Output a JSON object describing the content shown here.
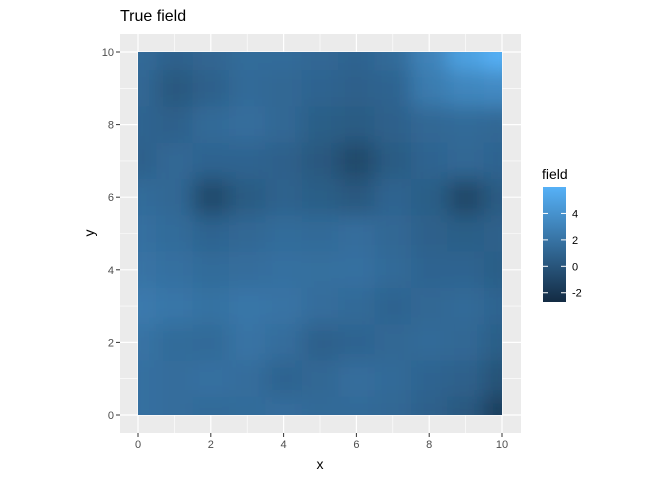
{
  "chart_data": {
    "type": "heatmap",
    "title": "True field",
    "xlabel": "x",
    "ylabel": "y",
    "xlim": [
      0,
      10
    ],
    "ylim": [
      0,
      10
    ],
    "x_ticks": [
      0,
      2,
      4,
      6,
      8,
      10
    ],
    "y_ticks": [
      0,
      2,
      4,
      6,
      8,
      10
    ],
    "grid": true,
    "panel_background": "#EBEBEB",
    "legend": {
      "title": "field",
      "position": "right",
      "ticks": [
        4,
        2,
        0,
        -2
      ],
      "range": [
        -2.7,
        6
      ],
      "colors": {
        "low": "#132B43",
        "high": "#56B1F7"
      }
    },
    "field_grid": {
      "x": [
        0,
        1,
        2,
        3,
        4,
        5,
        6,
        7,
        8,
        9,
        10
      ],
      "y": [
        10,
        9,
        8,
        7,
        6,
        5,
        4,
        3,
        2,
        1,
        0
      ],
      "values": [
        [
          1.4,
          0.9,
          1.1,
          1.5,
          1.5,
          1.2,
          1.0,
          1.5,
          3.0,
          5.0,
          6.0
        ],
        [
          1.2,
          0.2,
          0.8,
          1.4,
          1.2,
          1.0,
          0.8,
          1.0,
          2.5,
          3.2,
          3.5
        ],
        [
          1.0,
          0.8,
          1.4,
          1.6,
          1.2,
          0.6,
          0.4,
          0.8,
          1.2,
          1.4,
          1.2
        ],
        [
          0.8,
          1.2,
          1.0,
          1.0,
          0.8,
          0.2,
          -0.8,
          0.4,
          1.0,
          1.2,
          1.0
        ],
        [
          1.5,
          1.2,
          -0.8,
          0.4,
          0.9,
          0.6,
          0.2,
          1.0,
          0.6,
          -0.9,
          0.4
        ],
        [
          1.8,
          1.5,
          1.0,
          1.2,
          1.5,
          1.4,
          1.6,
          1.2,
          0.8,
          0.6,
          0.8
        ],
        [
          2.0,
          1.8,
          1.5,
          1.6,
          1.8,
          1.7,
          1.8,
          1.4,
          1.0,
          1.0,
          0.6
        ],
        [
          2.4,
          2.2,
          1.9,
          2.2,
          2.0,
          1.6,
          1.4,
          1.0,
          1.2,
          1.4,
          1.0
        ],
        [
          2.0,
          1.5,
          1.4,
          2.0,
          1.6,
          0.8,
          1.0,
          1.2,
          1.4,
          1.2,
          0.6
        ],
        [
          1.8,
          1.6,
          1.8,
          1.6,
          1.0,
          1.2,
          1.6,
          1.4,
          1.0,
          0.8,
          -0.2
        ],
        [
          1.8,
          1.6,
          1.4,
          1.5,
          1.6,
          1.4,
          1.4,
          1.2,
          0.8,
          0.2,
          -1.5
        ]
      ]
    }
  }
}
